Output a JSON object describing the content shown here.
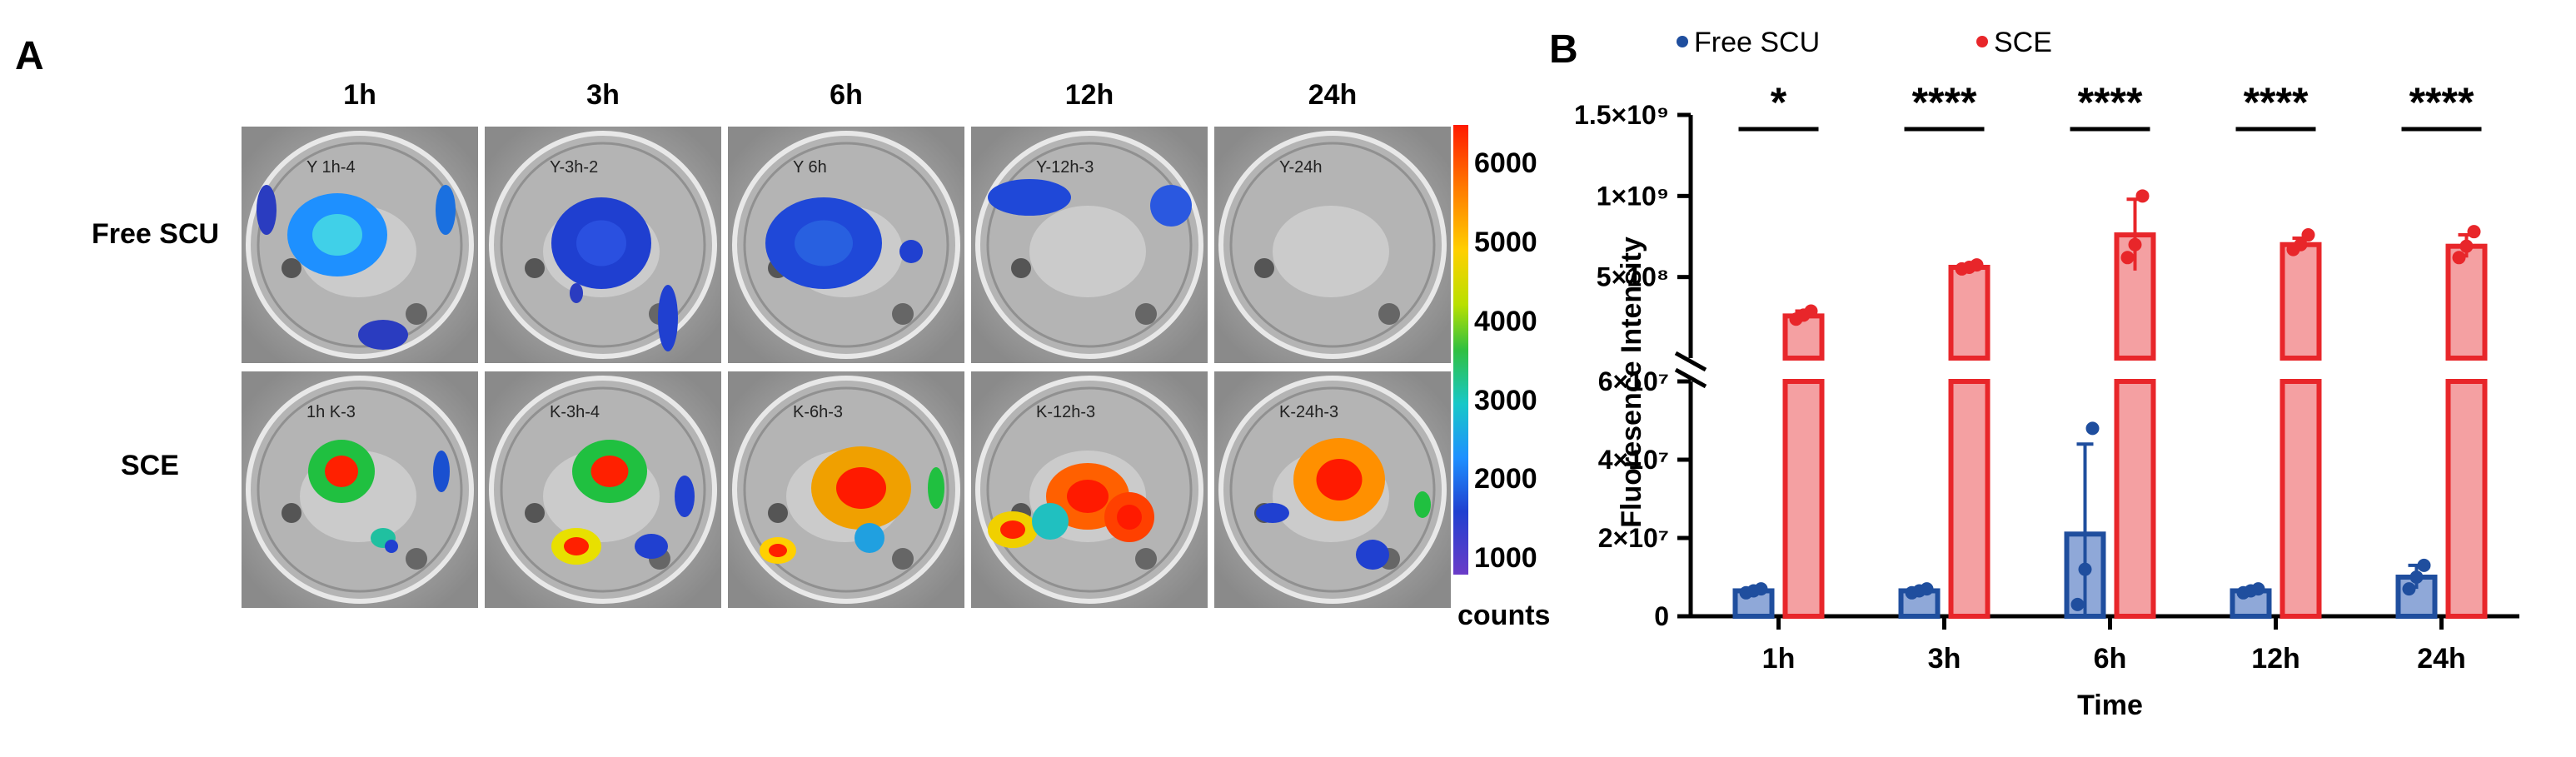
{
  "panel_a": {
    "letter": "A",
    "time_headers": [
      "1h",
      "3h",
      "6h",
      "12h",
      "24h"
    ],
    "rows": [
      {
        "label": "Free SCU",
        "plate_labels": [
          "Y 1h-4",
          "Y-3h-2",
          "Y 6h",
          "Y-12h-3",
          "Y-24h"
        ]
      },
      {
        "label": "SCE",
        "plate_labels": [
          "1h K-3",
          "K-3h-4",
          "K-6h-3",
          "K-12h-3",
          "K-24h-3"
        ]
      }
    ],
    "colorbar": {
      "ticks": [
        "6000",
        "5000",
        "4000",
        "3000",
        "2000",
        "1000"
      ],
      "unit": "counts",
      "min": 800,
      "max": 6500
    }
  },
  "chart_data": {
    "panel_letter": "B",
    "type": "bar",
    "categories": [
      "1h",
      "3h",
      "6h",
      "12h",
      "24h"
    ],
    "xlabel": "Time",
    "ylabel": "Fluoresence Intensity",
    "broken_y_axis": true,
    "y_lower": {
      "range": [
        0,
        60000000
      ],
      "ticks": [
        0,
        20000000,
        40000000,
        60000000
      ],
      "tick_labels": [
        "0",
        "2×10⁷",
        "4×10⁷",
        "6×10⁷"
      ]
    },
    "y_upper": {
      "range": [
        0,
        1500000000
      ],
      "ticks": [
        500000000,
        1000000000,
        1500000000
      ],
      "tick_labels": [
        "5×10⁸",
        "1×10⁹",
        "1.5×10⁹"
      ]
    },
    "series": [
      {
        "name": "Free SCU",
        "color": "#1f4e9e",
        "values": [
          6500000,
          6500000,
          21000000,
          6500000,
          10000000
        ],
        "error": [
          300000,
          300000,
          23000000,
          300000,
          3000000
        ],
        "points": [
          [
            6000000,
            6500000,
            7000000
          ],
          [
            6000000,
            6500000,
            7000000
          ],
          [
            3000000,
            12000000,
            48000000
          ],
          [
            6000000,
            6500000,
            7000000
          ],
          [
            7000000,
            10000000,
            13000000
          ]
        ]
      },
      {
        "name": "SCE",
        "color": "#e8262a",
        "values": [
          260000000,
          560000000,
          760000000,
          700000000,
          690000000
        ],
        "error": [
          30000000,
          15000000,
          220000000,
          40000000,
          70000000
        ],
        "points": [
          [
            240000000,
            265000000,
            290000000
          ],
          [
            550000000,
            560000000,
            575000000
          ],
          [
            620000000,
            700000000,
            1000000000
          ],
          [
            670000000,
            700000000,
            760000000
          ],
          [
            620000000,
            690000000,
            780000000
          ]
        ]
      }
    ],
    "significance": [
      "*",
      "****",
      "****",
      "****",
      "****"
    ],
    "legend_position": "top"
  }
}
